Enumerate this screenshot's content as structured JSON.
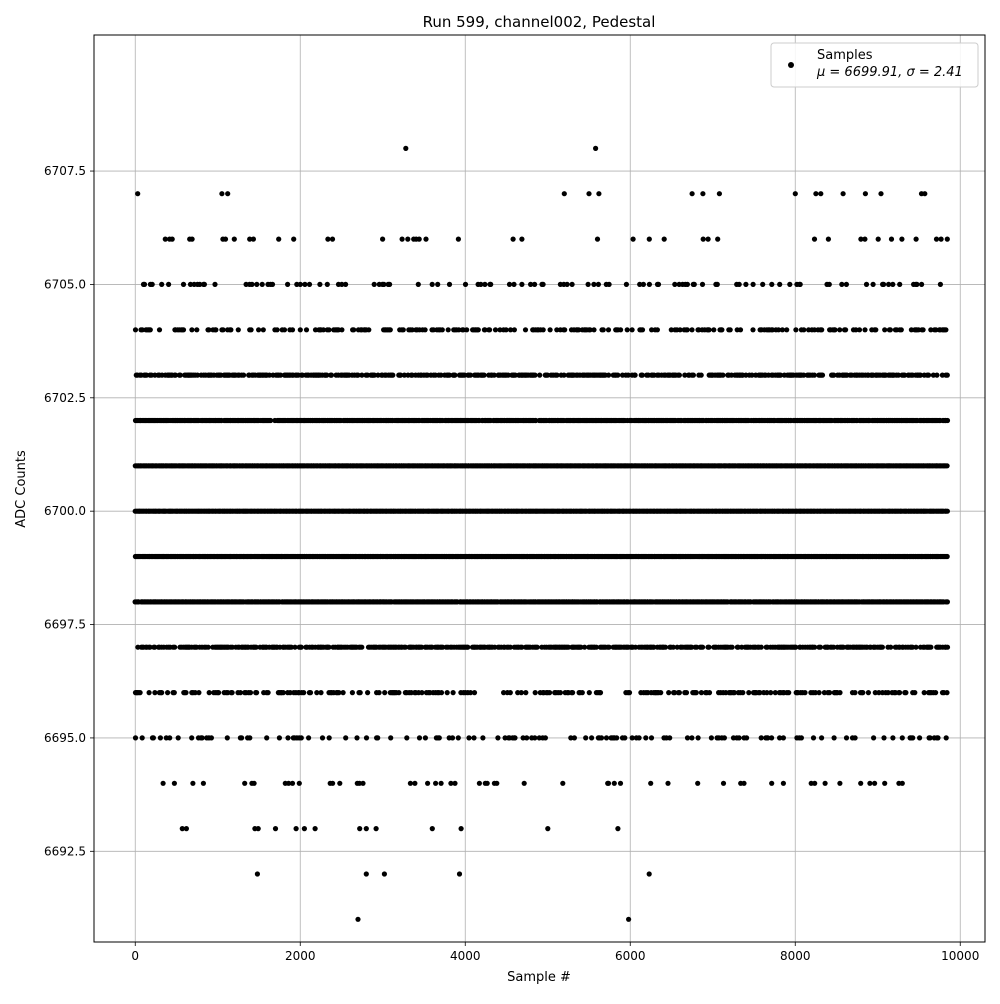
{
  "chart_data": {
    "type": "scatter",
    "title": "Run 599, channel002, Pedestal",
    "xlabel": "Sample #",
    "ylabel": "ADC Counts",
    "xlim": [
      -500,
      10300
    ],
    "ylim": [
      6690.5,
      6710.5
    ],
    "xticks": [
      0,
      2000,
      4000,
      6000,
      8000,
      10000
    ],
    "xtick_labels": [
      "0",
      "2000",
      "4000",
      "6000",
      "8000",
      "10000"
    ],
    "yticks": [
      6692.5,
      6695.0,
      6697.5,
      6700.0,
      6702.5,
      6705.0,
      6707.5
    ],
    "ytick_labels": [
      "6692.5",
      "6695.0",
      "6697.5",
      "6700.0",
      "6702.5",
      "6705.0",
      "6707.5"
    ],
    "grid": true,
    "legend_position": "top-right",
    "series": [
      {
        "name": "Samples",
        "label_line2": "μ = 6699.91, σ = 2.41",
        "color": "#000000",
        "marker": "circle",
        "n_points": 10000,
        "mean": 6699.91,
        "std": 2.41,
        "x_range": [
          0,
          9850
        ],
        "y_levels": [
          6691,
          6692,
          6693,
          6694,
          6695,
          6696,
          6697,
          6698,
          6699,
          6700,
          6701,
          6702,
          6703,
          6704,
          6705,
          6706,
          6707,
          6708
        ],
        "points": [
          [
            2700,
            6691
          ],
          [
            5980,
            6691
          ],
          [
            1480,
            6692
          ],
          [
            2800,
            6692
          ],
          [
            3020,
            6692
          ],
          [
            3930,
            6692
          ],
          [
            6230,
            6692
          ],
          [
            570,
            6693
          ],
          [
            620,
            6693
          ],
          [
            1450,
            6693
          ],
          [
            1490,
            6693
          ],
          [
            1700,
            6693
          ],
          [
            1950,
            6693
          ],
          [
            2050,
            6693
          ],
          [
            2180,
            6693
          ],
          [
            2720,
            6693
          ],
          [
            2800,
            6693
          ],
          [
            2920,
            6693
          ],
          [
            3600,
            6693
          ],
          [
            3950,
            6693
          ],
          [
            5000,
            6693
          ],
          [
            5850,
            6693
          ],
          [
            3280,
            6708
          ],
          [
            5580,
            6708
          ],
          [
            30,
            6707
          ],
          [
            1050,
            6707
          ],
          [
            1120,
            6707
          ],
          [
            5200,
            6707
          ],
          [
            5500,
            6707
          ],
          [
            5620,
            6707
          ],
          [
            6750,
            6707
          ],
          [
            6880,
            6707
          ],
          [
            7080,
            6707
          ],
          [
            8000,
            6707
          ],
          [
            8250,
            6707
          ],
          [
            8310,
            6707
          ],
          [
            8580,
            6707
          ],
          [
            8850,
            6707
          ],
          [
            9040,
            6707
          ],
          [
            9530,
            6707
          ],
          [
            9570,
            6707
          ]
        ]
      }
    ]
  }
}
